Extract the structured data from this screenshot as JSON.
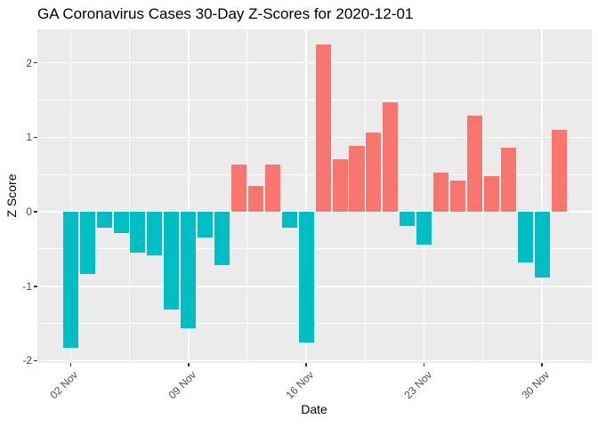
{
  "chart": {
    "title": "GA Coronavirus Cases 30-Day Z-Scores for 2020-12-01",
    "xlabel": "Date",
    "ylabel": "Z Score"
  },
  "chart_data": {
    "type": "bar",
    "title": "GA Coronavirus Cases 30-Day Z-Scores for 2020-12-01",
    "xlabel": "Date",
    "ylabel": "Z Score",
    "dates": [
      "2020-11-02",
      "2020-11-03",
      "2020-11-04",
      "2020-11-05",
      "2020-11-06",
      "2020-11-07",
      "2020-11-08",
      "2020-11-09",
      "2020-11-10",
      "2020-11-11",
      "2020-11-12",
      "2020-11-13",
      "2020-11-14",
      "2020-11-15",
      "2020-11-16",
      "2020-11-17",
      "2020-11-18",
      "2020-11-19",
      "2020-11-20",
      "2020-11-21",
      "2020-11-22",
      "2020-11-23",
      "2020-11-24",
      "2020-11-25",
      "2020-11-26",
      "2020-11-27",
      "2020-11-28",
      "2020-11-29",
      "2020-11-30",
      "2020-12-01"
    ],
    "values": [
      -1.83,
      -0.84,
      -0.21,
      -0.28,
      -0.55,
      -0.58,
      -1.31,
      -1.56,
      -0.34,
      -0.71,
      0.64,
      0.35,
      0.63,
      -0.22,
      -1.76,
      2.25,
      0.7,
      0.89,
      1.06,
      1.47,
      -0.19,
      -0.44,
      0.53,
      0.42,
      1.29,
      0.48,
      0.86,
      -0.68,
      -0.88,
      1.1
    ],
    "ylim": [
      -2.03,
      2.45
    ],
    "yticks": [
      2,
      1,
      0,
      -1,
      -2
    ],
    "ytick_labels": [
      "2",
      "1",
      "0",
      "-1",
      "-2"
    ],
    "yminor": [
      1.5,
      0.5,
      -0.5,
      -1.5
    ],
    "xlim_days": [
      -1.97,
      30.95
    ],
    "xticks": [
      {
        "day": 0,
        "label": "02 Nov"
      },
      {
        "day": 7,
        "label": "09 Nov"
      },
      {
        "day": 14,
        "label": "16 Nov"
      },
      {
        "day": 21,
        "label": "23 Nov"
      },
      {
        "day": 28,
        "label": "30 Nov"
      }
    ],
    "xminor_days": [
      3.5,
      10.5,
      17.5,
      24.5
    ],
    "bar_width_days": 0.9,
    "grid": true,
    "legend_position": "none",
    "colors": {
      "positive": "#F8766D",
      "negative": "#00BFC4",
      "panel_background": "#EBEBEB",
      "gridline": "#FFFFFF",
      "tick_label": "#4D4D4D",
      "tick_mark": "#333333",
      "title_text": "#000000"
    }
  }
}
